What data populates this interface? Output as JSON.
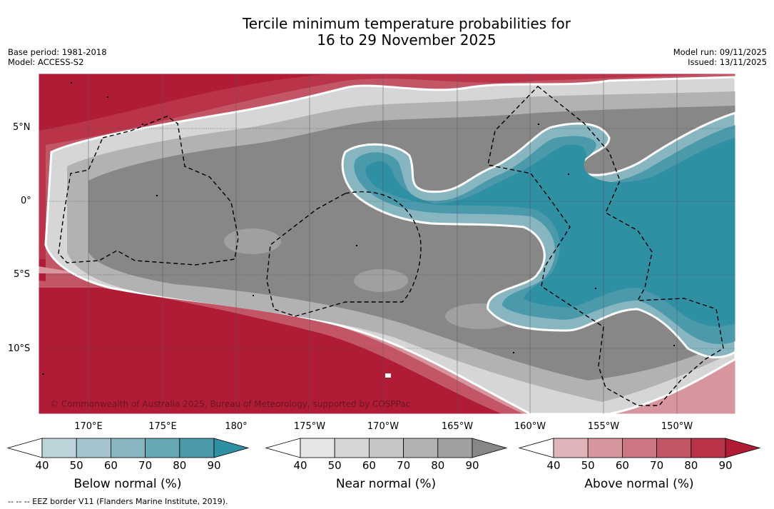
{
  "title": {
    "line1": "Tercile minimum temperature probabilities for",
    "line2": "16 to 29 November 2025"
  },
  "meta_left": {
    "base_period": "Base period: 1981-2018",
    "model": "Model: ACCESS-S2"
  },
  "meta_right": {
    "model_run": "Model run: 09/11/2025",
    "issued": "Issued: 13/11/2025"
  },
  "lat_labels": [
    "5°N",
    "0°",
    "5°S",
    "10°S"
  ],
  "lon_labels": [
    "170°E",
    "175°E",
    "180°",
    "175°W",
    "170°W",
    "165°W",
    "160°W",
    "155°W",
    "150°W"
  ],
  "copyright": "© Commonwealth of Australia 2025, Bureau of Meteorology, supported by COSPPac",
  "colorbars": [
    {
      "title": "Below normal (%)",
      "ticks": [
        "40",
        "50",
        "60",
        "70",
        "80",
        "90"
      ],
      "colors": [
        "#bcd3da",
        "#a4c5cd",
        "#87b6c1",
        "#67a8b6",
        "#4a9aab",
        "#2f8fa3"
      ]
    },
    {
      "title": "Near normal (%)",
      "ticks": [
        "40",
        "50",
        "60",
        "70",
        "80",
        "90"
      ],
      "colors": [
        "#e6e6e6",
        "#d6d6d6",
        "#c6c6c6",
        "#b2b2b2",
        "#a0a0a0",
        "#878787"
      ]
    },
    {
      "title": "Above normal (%)",
      "ticks": [
        "40",
        "50",
        "60",
        "70",
        "80",
        "90"
      ],
      "colors": [
        "#dfb3b8",
        "#d7959e",
        "#cc7682",
        "#c35666",
        "#ba3449",
        "#b01c36"
      ]
    }
  ],
  "footnote": "--  --  -- EEZ border V11 (Flanders Marine Institute, 2019)."
}
